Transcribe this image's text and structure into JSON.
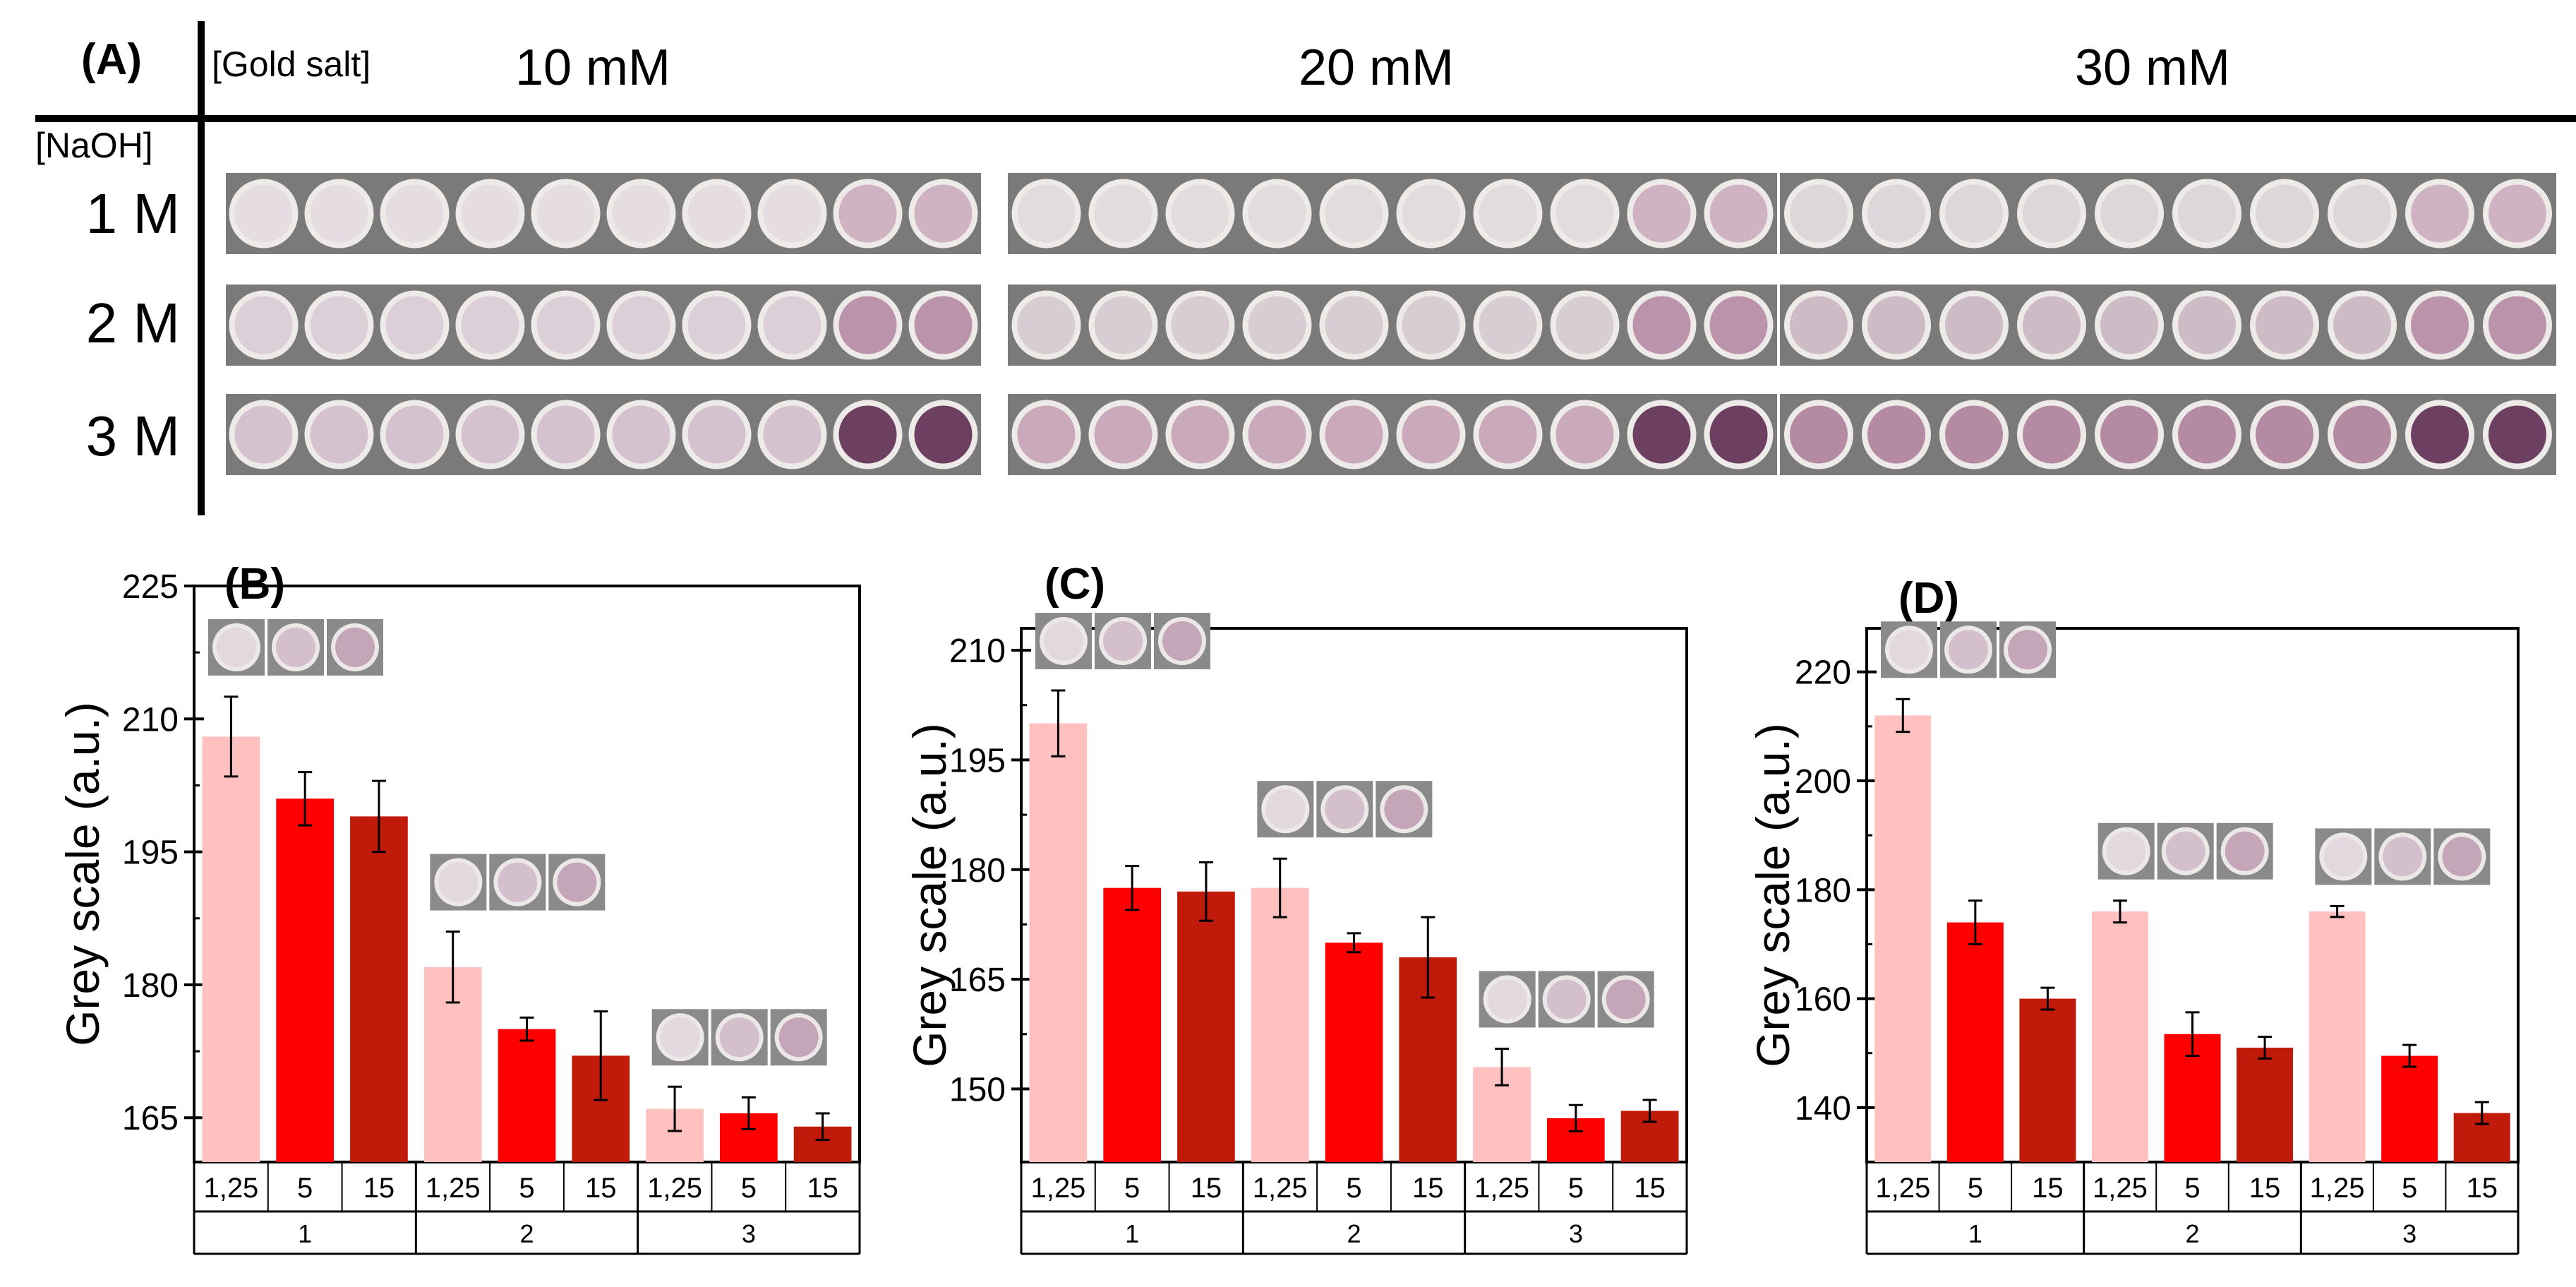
{
  "panel_a": {
    "label": "(A)",
    "col_header": "[Gold salt]",
    "row_header": "[NaOH]",
    "concentrations": [
      "10 mM",
      "20 mM",
      "30 mM"
    ],
    "rows": [
      "1 M",
      "2 M",
      "3 M"
    ],
    "spots_per_strip": 10,
    "spot_colors": {
      "10 mM": [
        "#e6dde2",
        "#ddcfd8",
        "#d5c2cf"
      ],
      "20 mM": [
        "#e2dcdf",
        "#d8cdd3",
        "#c9a9ba"
      ],
      "30 mM": [
        "#ddd6da",
        "#cdbcc5",
        "#b58aa3"
      ]
    },
    "spot_fade_last": [
      "#cfb3c3",
      "#bb93aa",
      "#6d4062"
    ]
  },
  "colors": {
    "c125": "#ffc0c0",
    "c5": "#ff0000",
    "c15": "#c01a0a",
    "strip_bg": "#7a7a7a",
    "axis": "#000000"
  },
  "chart_data": [
    {
      "type": "bar",
      "title": "(B)",
      "ylabel": "Grey scale (a.u.)",
      "ylim": [
        160,
        225
      ],
      "yticks": [
        "165",
        "180",
        "195",
        "210",
        "225"
      ],
      "groups": [
        "1",
        "2",
        "3"
      ],
      "subcategories": [
        "1,25",
        "5",
        "15"
      ],
      "series": [
        {
          "name": "1,25",
          "values": [
            208,
            182,
            166
          ],
          "errors": [
            4.5,
            4,
            2.5
          ]
        },
        {
          "name": "5",
          "values": [
            201,
            175,
            165.5
          ],
          "errors": [
            3,
            1.3,
            1.8
          ]
        },
        {
          "name": "15",
          "values": [
            199,
            172,
            164
          ],
          "errors": [
            4,
            5,
            1.5
          ]
        }
      ]
    },
    {
      "type": "bar",
      "title": "(C)",
      "ylabel": "Grey scale (a.u.)",
      "ylim": [
        140,
        213
      ],
      "yticks": [
        "150",
        "165",
        "180",
        "195",
        "210"
      ],
      "groups": [
        "1",
        "2",
        "3"
      ],
      "subcategories": [
        "1,25",
        "5",
        "15"
      ],
      "series": [
        {
          "name": "1,25",
          "values": [
            200,
            177.5,
            153
          ],
          "errors": [
            4.5,
            4,
            2.5
          ]
        },
        {
          "name": "5",
          "values": [
            177.5,
            170,
            146
          ],
          "errors": [
            3,
            1.3,
            1.8
          ]
        },
        {
          "name": "15",
          "values": [
            177,
            168,
            147
          ],
          "errors": [
            4,
            5.5,
            1.5
          ]
        }
      ]
    },
    {
      "type": "bar",
      "title": "(D)",
      "ylabel": "Grey scale (a.u.)",
      "ylim": [
        130,
        228
      ],
      "yticks": [
        "140",
        "160",
        "180",
        "200",
        "220"
      ],
      "groups": [
        "1",
        "2",
        "3"
      ],
      "subcategories": [
        "1,25",
        "5",
        "15"
      ],
      "series": [
        {
          "name": "1,25",
          "values": [
            212,
            176,
            176
          ],
          "errors": [
            3,
            2,
            1
          ]
        },
        {
          "name": "5",
          "values": [
            174,
            153.5,
            149.5
          ],
          "errors": [
            4,
            4,
            2
          ]
        },
        {
          "name": "15",
          "values": [
            160,
            151,
            139
          ],
          "errors": [
            2,
            2,
            2
          ]
        }
      ]
    }
  ]
}
